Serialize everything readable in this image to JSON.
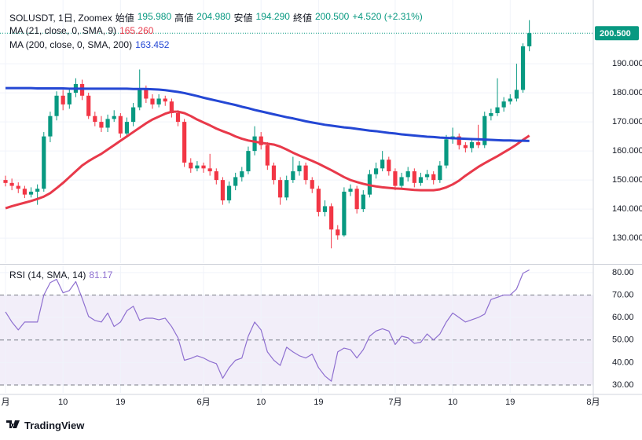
{
  "chart_data": {
    "type": "candlestick",
    "title": "SOLUSDT, 1日, Zoomex",
    "header": [
      {
        "label": "始値",
        "value": "195.980"
      },
      {
        "label": "高値",
        "value": "204.980"
      },
      {
        "label": "安値",
        "value": "194.290"
      },
      {
        "label": "終値",
        "value": "200.500"
      }
    ],
    "change": "+4.520 (+2.31%)",
    "price_label": "200.500",
    "brand": "TradingView",
    "categories": [
      "月",
      null,
      null,
      null,
      null,
      null,
      null,
      null,
      null,
      "10",
      null,
      null,
      null,
      null,
      null,
      null,
      null,
      null,
      "19",
      null,
      null,
      null,
      null,
      null,
      null,
      null,
      null,
      null,
      null,
      null,
      null,
      "6月",
      null,
      null,
      null,
      null,
      null,
      null,
      null,
      null,
      "10",
      null,
      null,
      null,
      null,
      null,
      null,
      null,
      null,
      "19",
      null,
      null,
      null,
      null,
      null,
      null,
      null,
      null,
      null,
      null,
      null,
      "7月",
      null,
      null,
      null,
      null,
      null,
      null,
      null,
      null,
      "10",
      null,
      null,
      null,
      null,
      null,
      null,
      null,
      null,
      "19",
      null,
      null,
      null,
      null,
      null,
      null,
      null,
      null,
      null,
      null,
      null,
      null,
      "8月"
    ],
    "up_color": "#089981",
    "down_color": "#f23645",
    "ohlc": [
      [
        150,
        151.5,
        147.8,
        149
      ],
      [
        149,
        150.5,
        146.5,
        148
      ],
      [
        148,
        149.2,
        145.5,
        147
      ],
      [
        147,
        148,
        143.8,
        145
      ],
      [
        145,
        147.5,
        144,
        146
      ],
      [
        146,
        148.5,
        141.5,
        147
      ],
      [
        147,
        166.5,
        146,
        165
      ],
      [
        165,
        173.5,
        163,
        172
      ],
      [
        172,
        180.5,
        170.5,
        179
      ],
      [
        179,
        181,
        174,
        176
      ],
      [
        176,
        181.5,
        174.5,
        180
      ],
      [
        180,
        185,
        178.5,
        183
      ],
      [
        183,
        184.5,
        177.5,
        179
      ],
      [
        179,
        180,
        171,
        172
      ],
      [
        172,
        173.5,
        168.5,
        170
      ],
      [
        170,
        172,
        166.5,
        168
      ],
      [
        168,
        172.5,
        166.5,
        171
      ],
      [
        171,
        174,
        170,
        172
      ],
      [
        172,
        173,
        164.5,
        166
      ],
      [
        166,
        171.5,
        165,
        170
      ],
      [
        170,
        176.5,
        168.5,
        175
      ],
      [
        175,
        188,
        174,
        181
      ],
      [
        181,
        182.5,
        176.5,
        178
      ],
      [
        178,
        179.5,
        174.5,
        176
      ],
      [
        176,
        179.5,
        175,
        178
      ],
      [
        178,
        179,
        175.5,
        177
      ],
      [
        177,
        178,
        171.5,
        173
      ],
      [
        173,
        174,
        168.5,
        170
      ],
      [
        170,
        171,
        154.5,
        156
      ],
      [
        156,
        157.5,
        152.5,
        154
      ],
      [
        154,
        156.5,
        153,
        155
      ],
      [
        155,
        156,
        152.5,
        154
      ],
      [
        154,
        159,
        151.5,
        153
      ],
      [
        153,
        154,
        148.5,
        150
      ],
      [
        150,
        151,
        141.5,
        143
      ],
      [
        143,
        149.5,
        142,
        148
      ],
      [
        148,
        152.5,
        146.5,
        151
      ],
      [
        151,
        154.5,
        149.5,
        153
      ],
      [
        153,
        161.5,
        152,
        160
      ],
      [
        160,
        168.5,
        158.5,
        165
      ],
      [
        165,
        166.5,
        160.5,
        162
      ],
      [
        162,
        163,
        153.5,
        155
      ],
      [
        155,
        156,
        148.5,
        150
      ],
      [
        150,
        151,
        141.5,
        144
      ],
      [
        144,
        151.5,
        143,
        150
      ],
      [
        150,
        158,
        149,
        153
      ],
      [
        153,
        156.5,
        151.5,
        155
      ],
      [
        155,
        156,
        148.5,
        150
      ],
      [
        150,
        151,
        145.5,
        147
      ],
      [
        147,
        148,
        137.5,
        139
      ],
      [
        139,
        143,
        137.5,
        141
      ],
      [
        141,
        142,
        126.5,
        133
      ],
      [
        133,
        134.5,
        129.5,
        131
      ],
      [
        131,
        147.5,
        130.5,
        146
      ],
      [
        146,
        148.5,
        144.5,
        147
      ],
      [
        147,
        148,
        138.5,
        140
      ],
      [
        140,
        146.5,
        139,
        145
      ],
      [
        145,
        153.5,
        144,
        152
      ],
      [
        152,
        156,
        150.5,
        154
      ],
      [
        154,
        160,
        153,
        157
      ],
      [
        157,
        158,
        151.5,
        153
      ],
      [
        153,
        154,
        146.5,
        148
      ],
      [
        148,
        152.5,
        147,
        151
      ],
      [
        151,
        154.5,
        149.5,
        153
      ],
      [
        153,
        154,
        147.5,
        149
      ],
      [
        149,
        152.5,
        148,
        151
      ],
      [
        151,
        153.5,
        150,
        152
      ],
      [
        152,
        153,
        148.5,
        150
      ],
      [
        150,
        156.5,
        149,
        155
      ],
      [
        155,
        165.5,
        154,
        164
      ],
      [
        164,
        168,
        162.5,
        165
      ],
      [
        165,
        166,
        160.5,
        162
      ],
      [
        162,
        163,
        159.5,
        161
      ],
      [
        161,
        164.5,
        159.5,
        163
      ],
      [
        163,
        169,
        161,
        162
      ],
      [
        162,
        173.5,
        161,
        172
      ],
      [
        172,
        174.5,
        170.5,
        173
      ],
      [
        173,
        185,
        172,
        175
      ],
      [
        175,
        178.5,
        173.5,
        177
      ],
      [
        177,
        179.5,
        176,
        178
      ],
      [
        178,
        190,
        177,
        181
      ],
      [
        181,
        197,
        180,
        195.98
      ],
      [
        195.98,
        204.98,
        194.29,
        200.5
      ],
      null,
      null,
      null,
      null,
      null,
      null,
      null,
      null,
      null,
      null
    ],
    "lines": [
      {
        "name": "MA (21, close, 0, SMA, 9)",
        "value_label": "165.260",
        "color": "#e8394a",
        "values": [
          140.3,
          141,
          141.6,
          142.2,
          142.8,
          143.5,
          144.3,
          145.5,
          147.2,
          149,
          151,
          153,
          155,
          156.5,
          157.8,
          159,
          160.5,
          162,
          163.5,
          165,
          166.5,
          168,
          169.5,
          170.8,
          171.8,
          172.8,
          173.5,
          173.5,
          173,
          172,
          170.8,
          169.8,
          168.8,
          167.7,
          166.8,
          166,
          165,
          164.2,
          163.6,
          163.2,
          162.8,
          162.5,
          162.2,
          161.5,
          160.5,
          159.4,
          158.4,
          157.5,
          156.6,
          155.6,
          154.5,
          153.4,
          152.2,
          151,
          150,
          149.3,
          148.7,
          148.2,
          147.8,
          147.5,
          147.3,
          147.1,
          147,
          146.8,
          146.6,
          146.5,
          146.5,
          146.5,
          146.8,
          147.5,
          148.5,
          149.8,
          151.5,
          153,
          154.5,
          155.8,
          157,
          158.2,
          159.5,
          160.8,
          162.2,
          163.8,
          165.26,
          null,
          null,
          null,
          null,
          null,
          null,
          null,
          null,
          null,
          null
        ]
      },
      {
        "name": "MA (200, close, 0, SMA, 200)",
        "value_label": "163.452",
        "color": "#2447d4",
        "values": [
          181.6,
          181.6,
          181.6,
          181.6,
          181.6,
          181.5,
          181.5,
          181.5,
          181.5,
          181.5,
          181.4,
          181.4,
          181.4,
          181.4,
          181.4,
          181.4,
          181.4,
          181.4,
          181.4,
          181.4,
          181.3,
          181.3,
          181.3,
          181.2,
          181.1,
          180.9,
          180.6,
          180.3,
          179.9,
          179.4,
          178.9,
          178.3,
          177.8,
          177.3,
          176.8,
          176.3,
          175.8,
          175.2,
          174.7,
          174.1,
          173.6,
          173.1,
          172.6,
          172.1,
          171.6,
          171.2,
          170.7,
          170.2,
          169.8,
          169.4,
          169,
          168.7,
          168.4,
          168.1,
          167.9,
          167.6,
          167.3,
          167,
          166.8,
          166.5,
          166.2,
          166,
          165.7,
          165.5,
          165.3,
          165.1,
          164.9,
          164.8,
          164.6,
          164.5,
          164.4,
          164.3,
          164.2,
          164.1,
          164,
          163.9,
          163.8,
          163.7,
          163.6,
          163.6,
          163.5,
          163.5,
          163.452,
          null,
          null,
          null,
          null,
          null,
          null,
          null,
          null,
          null,
          null
        ]
      }
    ],
    "ylim": [
      121.4,
      211.9
    ],
    "yticks": [
      {
        "value": 130,
        "label": "130.000"
      },
      {
        "value": 140,
        "label": "140.000"
      },
      {
        "value": 150,
        "label": "150.000"
      },
      {
        "value": 160,
        "label": "160.000"
      },
      {
        "value": 170,
        "label": "170.000"
      },
      {
        "value": 180,
        "label": "180.000"
      },
      {
        "value": 190,
        "label": "190.000"
      }
    ],
    "grid": true,
    "rsi": {
      "name": "RSI (14, SMA, 14)",
      "value_label": "81.17",
      "color": "#8e6fd0",
      "band_color": "#7e57c2",
      "values": [
        62.5,
        58,
        54.5,
        58,
        58,
        58,
        70,
        75.5,
        77,
        71,
        72,
        76,
        68.5,
        60.5,
        58.7,
        58,
        62,
        56,
        58,
        63,
        65,
        58.7,
        59.7,
        59.7,
        59,
        59.7,
        56,
        51,
        41,
        41.8,
        43,
        42,
        40.5,
        39.5,
        33,
        37.7,
        41,
        42,
        51.7,
        58,
        54.5,
        44.7,
        41,
        38.7,
        46.8,
        44.7,
        43,
        42,
        43.7,
        37.7,
        34,
        31.7,
        44.7,
        46.4,
        45.7,
        42,
        45.7,
        51.7,
        54,
        55,
        54,
        48,
        51.7,
        51,
        48.5,
        49,
        52.7,
        50,
        52.7,
        58,
        62,
        60,
        58,
        59,
        60,
        61.5,
        68,
        69,
        70,
        70,
        72.7,
        79.7,
        81.17,
        null,
        null,
        null,
        null,
        null,
        null,
        null,
        null,
        null,
        null
      ],
      "ylim": [
        26.5,
        83.1
      ],
      "yticks": [
        {
          "value": 30,
          "label": "30.00"
        },
        {
          "value": 40,
          "label": "40.00"
        },
        {
          "value": 50,
          "label": "50.00"
        },
        {
          "value": 60,
          "label": "60.00"
        },
        {
          "value": 70,
          "label": "70.00"
        },
        {
          "value": 80,
          "label": "80.00"
        }
      ],
      "bands": [
        30,
        50,
        70
      ]
    }
  }
}
